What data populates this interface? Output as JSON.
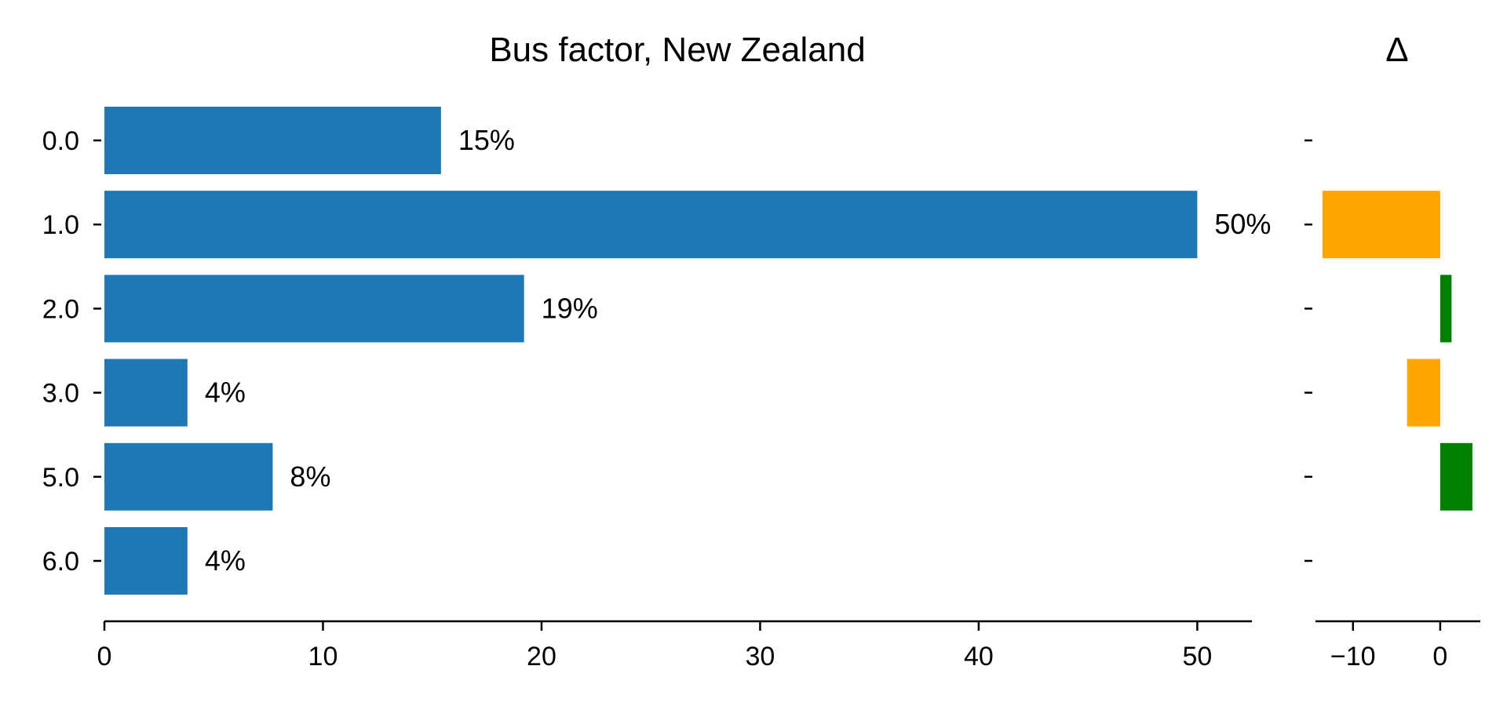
{
  "chart_data": [
    {
      "type": "bar",
      "orientation": "horizontal",
      "title": "Bus factor, New Zealand",
      "categories": [
        "0.0",
        "1.0",
        "2.0",
        "3.0",
        "5.0",
        "6.0"
      ],
      "values": [
        15.4,
        50.0,
        19.2,
        3.8,
        7.7,
        3.8
      ],
      "data_labels": [
        "15%",
        "50%",
        "19%",
        "4%",
        "8%",
        "4%"
      ],
      "xlim": [
        0,
        52.5
      ],
      "xticks": [
        0,
        10,
        20,
        30,
        40,
        50
      ],
      "bar_color": "#1f77b4",
      "grid": false
    },
    {
      "type": "bar",
      "orientation": "horizontal",
      "title": "Δ",
      "categories": [
        "0.0",
        "1.0",
        "2.0",
        "3.0",
        "5.0",
        "6.0"
      ],
      "values": [
        0,
        -13.5,
        1.3,
        -3.8,
        3.7,
        0
      ],
      "xlim": [
        -14.3,
        4.6
      ],
      "xticks": [
        -10,
        0
      ],
      "xtick_labels": [
        "−10",
        "0"
      ],
      "positive_color": "#008000",
      "negative_color": "#ffa500",
      "grid": false
    }
  ]
}
